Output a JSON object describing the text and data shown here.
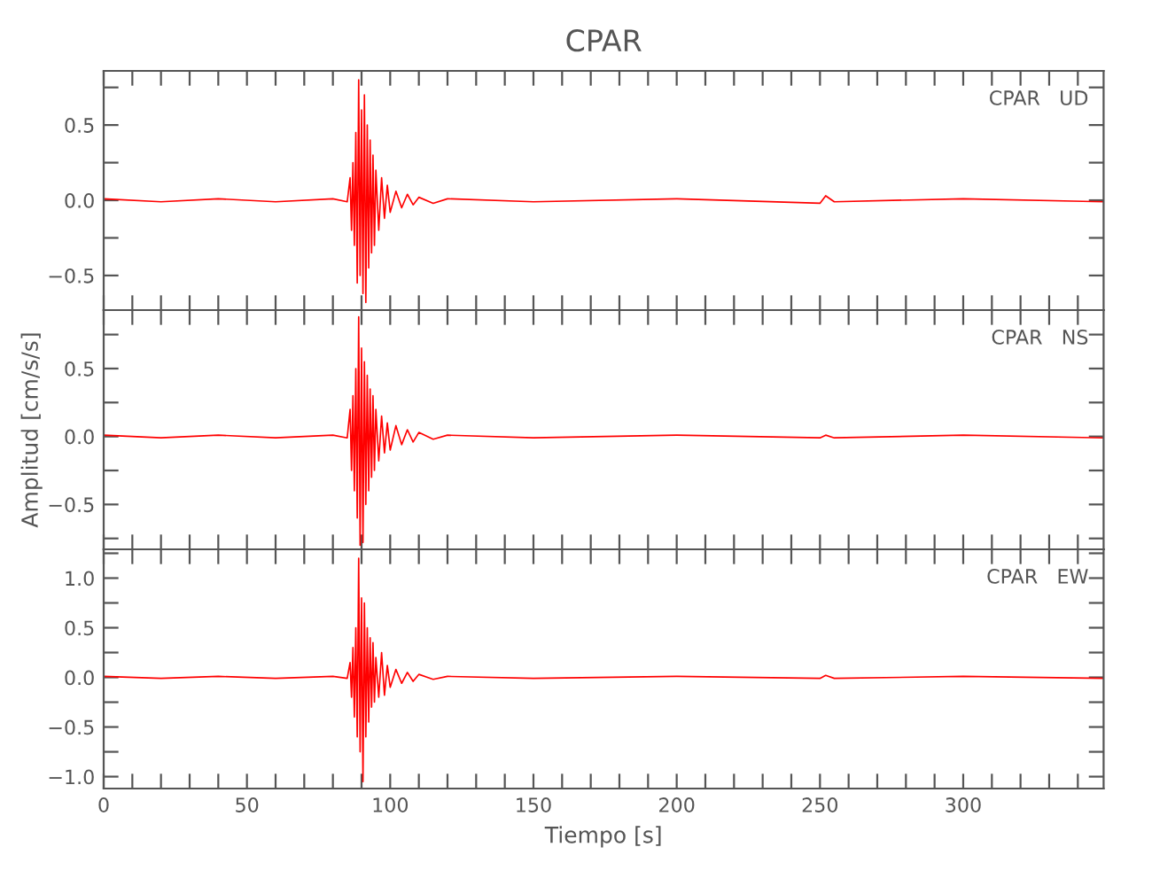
{
  "chart_data": [
    {
      "type": "line",
      "title": "CPAR",
      "annotations": [
        "CPAR   UD"
      ],
      "tick_labels": "y",
      "grid": false,
      "legend": false,
      "x": [
        0,
        20,
        40,
        60,
        80,
        85,
        86,
        86.5,
        87,
        87.5,
        88,
        88.5,
        89,
        89.5,
        90,
        90.5,
        91,
        91.5,
        92,
        92.5,
        93,
        93.5,
        94,
        94.5,
        95,
        96,
        97,
        98,
        99,
        100,
        102,
        104,
        106,
        108,
        110,
        115,
        120,
        150,
        200,
        250,
        252,
        255,
        300,
        349
      ],
      "series": [
        {
          "color": "#ff0000",
          "values": [
            0.01,
            -0.01,
            0.01,
            -0.01,
            0.01,
            -0.01,
            0.15,
            -0.2,
            0.25,
            -0.3,
            0.45,
            -0.55,
            0.8,
            -0.5,
            0.6,
            -0.62,
            0.7,
            -0.68,
            0.5,
            -0.45,
            0.4,
            -0.35,
            0.3,
            -0.3,
            0.2,
            -0.2,
            0.15,
            -0.12,
            0.1,
            -0.08,
            0.06,
            -0.05,
            0.04,
            -0.03,
            0.02,
            -0.02,
            0.01,
            -0.01,
            0.01,
            -0.02,
            0.03,
            -0.01,
            0.01,
            -0.01
          ]
        }
      ],
      "xlim": [
        0,
        349
      ],
      "ylim": [
        -0.73,
        0.86
      ],
      "xticks": [
        0,
        {
          "value": 10,
          "label": null
        },
        {
          "value": 20,
          "label": null
        },
        {
          "value": 30,
          "label": null
        },
        {
          "value": 40,
          "label": null
        },
        50,
        {
          "value": 60,
          "label": null
        },
        {
          "value": 70,
          "label": null
        },
        {
          "value": 80,
          "label": null
        },
        {
          "value": 90,
          "label": null
        },
        100,
        {
          "value": 110,
          "label": null
        },
        {
          "value": 120,
          "label": null
        },
        {
          "value": 130,
          "label": null
        },
        {
          "value": 140,
          "label": null
        },
        150,
        {
          "value": 160,
          "label": null
        },
        {
          "value": 170,
          "label": null
        },
        {
          "value": 180,
          "label": null
        },
        {
          "value": 190,
          "label": null
        },
        200,
        {
          "value": 210,
          "label": null
        },
        {
          "value": 220,
          "label": null
        },
        {
          "value": 230,
          "label": null
        },
        {
          "value": 240,
          "label": null
        },
        250,
        {
          "value": 260,
          "label": null
        },
        {
          "value": 270,
          "label": null
        },
        {
          "value": 280,
          "label": null
        },
        {
          "value": 290,
          "label": null
        },
        300,
        {
          "value": 310,
          "label": null
        },
        {
          "value": 320,
          "label": null
        },
        {
          "value": 330,
          "label": null
        },
        {
          "value": 340,
          "label": null
        }
      ],
      "yticks": [
        {
          "value": -0.5,
          "label": "−0.5"
        },
        {
          "value": -0.25,
          "label": null
        },
        {
          "value": 0,
          "label": "0.0"
        },
        {
          "value": 0.25,
          "label": null
        },
        {
          "value": 0.5,
          "label": "0.5"
        },
        {
          "value": 0.75,
          "label": null
        }
      ]
    },
    {
      "type": "line",
      "ylabel": "Amplitud [cm/s/s]",
      "annotations": [
        "CPAR   NS"
      ],
      "tick_labels": "y",
      "grid": false,
      "legend": false,
      "x": [
        0,
        20,
        40,
        60,
        80,
        85,
        86,
        86.5,
        87,
        87.5,
        88,
        88.5,
        89,
        89.5,
        90,
        90.5,
        91,
        91.5,
        92,
        92.5,
        93,
        93.5,
        94,
        94.5,
        95,
        96,
        97,
        98,
        99,
        100,
        102,
        104,
        106,
        108,
        110,
        115,
        120,
        150,
        200,
        250,
        252,
        255,
        300,
        349
      ],
      "series": [
        {
          "color": "#ff0000",
          "values": [
            0.01,
            -0.01,
            0.01,
            -0.01,
            0.01,
            -0.01,
            0.2,
            -0.25,
            0.3,
            -0.4,
            0.5,
            -0.6,
            0.88,
            -0.8,
            0.65,
            -0.78,
            0.55,
            -0.5,
            0.45,
            -0.4,
            0.35,
            -0.3,
            0.3,
            -0.25,
            0.2,
            -0.18,
            0.15,
            -0.12,
            0.1,
            -0.1,
            0.08,
            -0.06,
            0.05,
            -0.04,
            0.03,
            -0.02,
            0.01,
            -0.01,
            0.01,
            -0.01,
            0.01,
            -0.01,
            0.01,
            -0.01
          ]
        }
      ],
      "xlim": [
        0,
        349
      ],
      "ylim": [
        -0.83,
        0.93
      ],
      "xticks": [
        0,
        {
          "value": 10,
          "label": null
        },
        {
          "value": 20,
          "label": null
        },
        {
          "value": 30,
          "label": null
        },
        {
          "value": 40,
          "label": null
        },
        50,
        {
          "value": 60,
          "label": null
        },
        {
          "value": 70,
          "label": null
        },
        {
          "value": 80,
          "label": null
        },
        {
          "value": 90,
          "label": null
        },
        100,
        {
          "value": 110,
          "label": null
        },
        {
          "value": 120,
          "label": null
        },
        {
          "value": 130,
          "label": null
        },
        {
          "value": 140,
          "label": null
        },
        150,
        {
          "value": 160,
          "label": null
        },
        {
          "value": 170,
          "label": null
        },
        {
          "value": 180,
          "label": null
        },
        {
          "value": 190,
          "label": null
        },
        200,
        {
          "value": 210,
          "label": null
        },
        {
          "value": 220,
          "label": null
        },
        {
          "value": 230,
          "label": null
        },
        {
          "value": 240,
          "label": null
        },
        250,
        {
          "value": 260,
          "label": null
        },
        {
          "value": 270,
          "label": null
        },
        {
          "value": 280,
          "label": null
        },
        {
          "value": 290,
          "label": null
        },
        300,
        {
          "value": 310,
          "label": null
        },
        {
          "value": 320,
          "label": null
        },
        {
          "value": 330,
          "label": null
        },
        {
          "value": 340,
          "label": null
        }
      ],
      "yticks": [
        {
          "value": -0.75,
          "label": null
        },
        {
          "value": -0.5,
          "label": "−0.5"
        },
        {
          "value": -0.25,
          "label": null
        },
        {
          "value": 0,
          "label": "0.0"
        },
        {
          "value": 0.25,
          "label": null
        },
        {
          "value": 0.5,
          "label": "0.5"
        },
        {
          "value": 0.75,
          "label": null
        }
      ]
    },
    {
      "type": "line",
      "xlabel": "Tiempo [s]",
      "annotations": [
        "CPAR   EW"
      ],
      "grid": false,
      "legend": false,
      "x": [
        0,
        20,
        40,
        60,
        80,
        85,
        86,
        86.5,
        87,
        87.5,
        88,
        88.5,
        89,
        89.5,
        90,
        90.5,
        91,
        91.5,
        92,
        92.5,
        93,
        93.5,
        94,
        94.5,
        95,
        96,
        97,
        98,
        99,
        100,
        102,
        104,
        106,
        108,
        110,
        115,
        120,
        150,
        200,
        250,
        252,
        255,
        300,
        349
      ],
      "series": [
        {
          "color": "#ff0000",
          "values": [
            0.01,
            -0.01,
            0.01,
            -0.01,
            0.01,
            -0.01,
            0.15,
            -0.2,
            0.3,
            -0.4,
            0.5,
            -0.6,
            1.2,
            -0.75,
            0.8,
            -1.05,
            0.75,
            -0.6,
            0.5,
            -0.45,
            0.4,
            -0.3,
            0.35,
            -0.25,
            0.2,
            -0.2,
            0.25,
            -0.18,
            0.12,
            -0.1,
            0.08,
            -0.06,
            0.05,
            -0.04,
            0.03,
            -0.02,
            0.01,
            -0.01,
            0.01,
            -0.01,
            0.02,
            -0.01,
            0.01,
            -0.01
          ]
        }
      ],
      "xlim": [
        0,
        349
      ],
      "ylim": [
        -1.12,
        1.29
      ],
      "xticks": [
        0,
        {
          "value": 10,
          "label": null
        },
        {
          "value": 20,
          "label": null
        },
        {
          "value": 30,
          "label": null
        },
        {
          "value": 40,
          "label": null
        },
        50,
        {
          "value": 60,
          "label": null
        },
        {
          "value": 70,
          "label": null
        },
        {
          "value": 80,
          "label": null
        },
        {
          "value": 90,
          "label": null
        },
        100,
        {
          "value": 110,
          "label": null
        },
        {
          "value": 120,
          "label": null
        },
        {
          "value": 130,
          "label": null
        },
        {
          "value": 140,
          "label": null
        },
        150,
        {
          "value": 160,
          "label": null
        },
        {
          "value": 170,
          "label": null
        },
        {
          "value": 180,
          "label": null
        },
        {
          "value": 190,
          "label": null
        },
        200,
        {
          "value": 210,
          "label": null
        },
        {
          "value": 220,
          "label": null
        },
        {
          "value": 230,
          "label": null
        },
        {
          "value": 240,
          "label": null
        },
        250,
        {
          "value": 260,
          "label": null
        },
        {
          "value": 270,
          "label": null
        },
        {
          "value": 280,
          "label": null
        },
        {
          "value": 290,
          "label": null
        },
        300,
        {
          "value": 310,
          "label": null
        },
        {
          "value": 320,
          "label": null
        },
        {
          "value": 330,
          "label": null
        },
        {
          "value": 340,
          "label": null
        }
      ],
      "yticks": [
        {
          "value": -1.0,
          "label": "−1.0"
        },
        {
          "value": -0.75,
          "label": null
        },
        {
          "value": -0.5,
          "label": "−0.5"
        },
        {
          "value": -0.25,
          "label": null
        },
        {
          "value": 0,
          "label": "0.0"
        },
        {
          "value": 0.25,
          "label": null
        },
        {
          "value": 0.5,
          "label": "0.5"
        },
        {
          "value": 0.75,
          "label": null
        },
        {
          "value": 1.0,
          "label": "1.0"
        },
        {
          "value": 1.25,
          "label": null
        }
      ]
    }
  ]
}
